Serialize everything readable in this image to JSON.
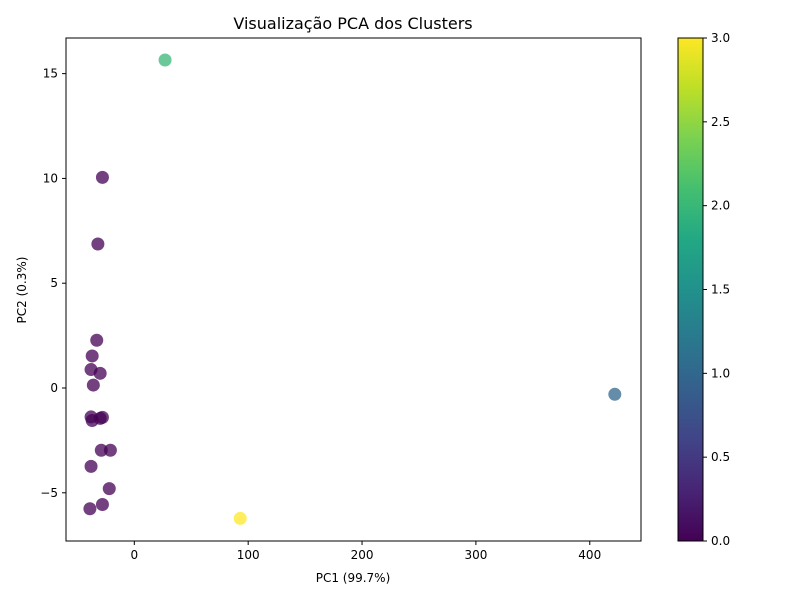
{
  "chart_data": {
    "type": "scatter",
    "title": "Visualização PCA dos Clusters",
    "xlabel": "PC1 (99.7%)",
    "ylabel": "PC2 (0.3%)",
    "xlim": [
      -60,
      445
    ],
    "ylim": [
      -7.3,
      16.7
    ],
    "xticks": [
      0,
      100,
      200,
      300,
      400
    ],
    "yticks": [
      -5,
      0,
      5,
      10,
      15
    ],
    "grid": false,
    "colorbar": {
      "min": 0.0,
      "max": 3.0,
      "ticks": [
        "0.0",
        "0.5",
        "1.0",
        "1.5",
        "2.0",
        "2.5",
        "3.0"
      ],
      "colormap": "viridis"
    },
    "points": [
      {
        "x": 27,
        "y": 15.65,
        "cluster": 2
      },
      {
        "x": -28,
        "y": 10.05,
        "cluster": 0
      },
      {
        "x": -32,
        "y": 6.87,
        "cluster": 0
      },
      {
        "x": -33,
        "y": 2.28,
        "cluster": 0
      },
      {
        "x": -37,
        "y": 1.53,
        "cluster": 0
      },
      {
        "x": -38,
        "y": 0.88,
        "cluster": 0
      },
      {
        "x": -30,
        "y": 0.7,
        "cluster": 0
      },
      {
        "x": -36,
        "y": 0.14,
        "cluster": 0
      },
      {
        "x": -38,
        "y": -1.38,
        "cluster": 0
      },
      {
        "x": -37,
        "y": -1.55,
        "cluster": 0
      },
      {
        "x": -30,
        "y": -1.45,
        "cluster": 0
      },
      {
        "x": -28,
        "y": -1.4,
        "cluster": 0
      },
      {
        "x": -29,
        "y": -2.97,
        "cluster": 0
      },
      {
        "x": -21,
        "y": -2.97,
        "cluster": 0
      },
      {
        "x": -38,
        "y": -3.74,
        "cluster": 0
      },
      {
        "x": -22,
        "y": -4.8,
        "cluster": 0
      },
      {
        "x": -28,
        "y": -5.56,
        "cluster": 0
      },
      {
        "x": -39,
        "y": -5.76,
        "cluster": 0
      },
      {
        "x": 422,
        "y": -0.3,
        "cluster": 1
      },
      {
        "x": 93,
        "y": -6.22,
        "cluster": 3
      }
    ]
  }
}
